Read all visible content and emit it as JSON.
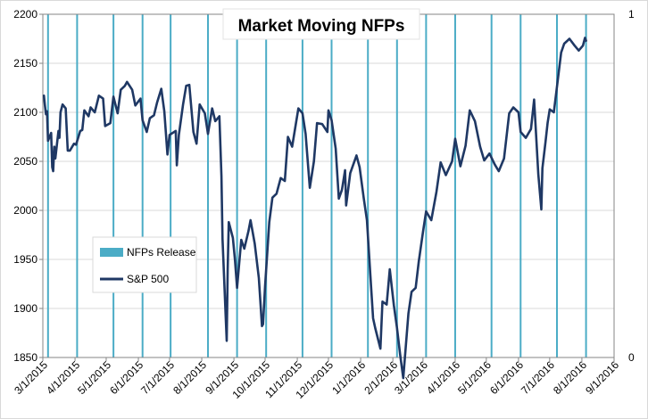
{
  "chart_data": {
    "type": "line",
    "title": "Market Moving NFPs",
    "xlabel": "",
    "ylabel": "",
    "ylim": [
      1850,
      2200
    ],
    "y2lim": [
      0,
      1
    ],
    "x_ticks": [
      "3/1/2015",
      "4/1/2015",
      "5/1/2015",
      "6/1/2015",
      "7/1/2015",
      "8/1/2015",
      "9/1/2015",
      "10/1/2015",
      "11/1/2015",
      "12/1/2015",
      "1/1/2016",
      "2/1/2016",
      "3/1/2016",
      "4/1/2016",
      "5/1/2016",
      "6/1/2016",
      "7/1/2016",
      "8/1/2016",
      "9/1/2016"
    ],
    "y_ticks": [
      1850,
      1900,
      1950,
      2000,
      2050,
      2100,
      2150,
      2200
    ],
    "y2_ticks": [
      0,
      1
    ],
    "grid": "horizontal",
    "legend_position": "left-middle",
    "colors": {
      "nfp": "#4bacc6",
      "sp500": "#1f3864",
      "grid": "#d9d9d9",
      "axis": "#868686"
    },
    "series": [
      {
        "name": "NFPs Release",
        "kind": "vertical-markers",
        "x": [
          "3/6/2015",
          "4/3/2015",
          "5/8/2015",
          "6/5/2015",
          "7/2/2015",
          "8/7/2015",
          "9/4/2015",
          "10/2/2015",
          "11/6/2015",
          "12/4/2015",
          "1/8/2016",
          "2/5/2016",
          "3/4/2016",
          "4/1/2016",
          "5/6/2016",
          "6/3/2016",
          "7/8/2016",
          "8/5/2016"
        ]
      },
      {
        "name": "S&P 500",
        "kind": "line",
        "x": [
          "3/2/2015",
          "3/3/2015",
          "3/4/2015",
          "3/5/2015",
          "3/6/2015",
          "3/9/2015",
          "3/10/2015",
          "3/11/2015",
          "3/12/2015",
          "3/13/2015",
          "3/16/2015",
          "3/17/2015",
          "3/18/2015",
          "3/20/2015",
          "3/23/2015",
          "3/25/2015",
          "3/27/2015",
          "3/31/2015",
          "4/2/2015",
          "4/6/2015",
          "4/8/2015",
          "4/10/2015",
          "4/14/2015",
          "4/16/2015",
          "4/20/2015",
          "4/24/2015",
          "4/28/2015",
          "4/30/2015",
          "5/5/2015",
          "5/8/2015",
          "5/12/2015",
          "5/15/2015",
          "5/19/2015",
          "5/21/2015",
          "5/26/2015",
          "5/29/2015",
          "6/3/2015",
          "6/5/2015",
          "6/9/2015",
          "6/12/2015",
          "6/16/2015",
          "6/19/2015",
          "6/23/2015",
          "6/26/2015",
          "6/29/2015",
          "7/1/2015",
          "7/7/2015",
          "7/8/2015",
          "7/10/2015",
          "7/14/2015",
          "7/17/2015",
          "7/20/2015",
          "7/24/2015",
          "7/27/2015",
          "7/30/2015",
          "8/4/2015",
          "8/7/2015",
          "8/11/2015",
          "8/14/2015",
          "8/18/2015",
          "8/20/2015",
          "8/21/2015",
          "8/24/2015",
          "8/25/2015",
          "8/26/2015",
          "8/27/2015",
          "8/31/2015",
          "9/2/2015",
          "9/4/2015",
          "9/8/2015",
          "9/11/2015",
          "9/15/2015",
          "9/17/2015",
          "9/21/2015",
          "9/25/2015",
          "9/28/2015",
          "9/29/2015",
          "10/1/2015",
          "10/5/2015",
          "10/8/2015",
          "10/12/2015",
          "10/16/2015",
          "10/20/2015",
          "10/23/2015",
          "10/27/2015",
          "11/2/2015",
          "11/6/2015",
          "11/9/2015",
          "11/13/2015",
          "11/17/2015",
          "11/20/2015",
          "11/25/2015",
          "11/30/2015",
          "12/1/2015",
          "12/4/2015",
          "12/8/2015",
          "12/11/2015",
          "12/14/2015",
          "12/17/2015",
          "12/18/2015",
          "12/22/2015",
          "12/28/2015",
          "12/31/2015",
          "1/4/2016",
          "1/7/2016",
          "1/11/2016",
          "1/13/2016",
          "1/15/2016",
          "1/20/2016",
          "1/22/2016",
          "1/26/2016",
          "1/29/2016",
          "2/2/2016",
          "2/5/2016",
          "2/8/2016",
          "2/11/2016",
          "2/16/2016",
          "2/19/2016",
          "2/23/2016",
          "2/26/2016",
          "3/1/2016",
          "3/4/2016",
          "3/9/2016",
          "3/14/2016",
          "3/18/2016",
          "3/23/2016",
          "3/29/2016",
          "4/1/2016",
          "4/6/2016",
          "4/11/2016",
          "4/15/2016",
          "4/20/2016",
          "4/25/2016",
          "4/29/2016",
          "5/4/2016",
          "5/9/2016",
          "5/13/2016",
          "5/18/2016",
          "5/23/2016",
          "5/27/2016",
          "6/1/2016",
          "6/3/2016",
          "6/8/2016",
          "6/13/2016",
          "6/16/2016",
          "6/20/2016",
          "6/23/2016",
          "6/24/2016",
          "6/27/2016",
          "6/29/2016",
          "7/1/2016",
          "7/5/2016",
          "7/8/2016",
          "7/12/2016",
          "7/15/2016",
          "7/20/2016",
          "7/25/2016",
          "7/29/2016",
          "8/2/2016",
          "8/4/2016",
          "8/5/2016"
        ],
        "values": [
          2117,
          2107,
          2098,
          2101,
          2071,
          2079,
          2044,
          2040,
          2065,
          2053,
          2081,
          2074,
          2100,
          2108,
          2104,
          2061,
          2061,
          2068,
          2067,
          2081,
          2082,
          2102,
          2096,
          2105,
          2100,
          2117,
          2114,
          2086,
          2089,
          2116,
          2099,
          2123,
          2127,
          2131,
          2123,
          2107,
          2114,
          2092,
          2080,
          2094,
          2097,
          2110,
          2124,
          2101,
          2057,
          2077,
          2081,
          2046,
          2077,
          2108,
          2127,
          2128,
          2080,
          2068,
          2108,
          2099,
          2078,
          2104,
          2091,
          2096,
          2035,
          1971,
          1893,
          1867,
          1940,
          1988,
          1972,
          1949,
          1921,
          1970,
          1961,
          1979,
          1990,
          1966,
          1931,
          1882,
          1884,
          1923,
          1988,
          2013,
          2017,
          2033,
          2030,
          2075,
          2065,
          2104,
          2099,
          2078,
          2023,
          2050,
          2089,
          2088,
          2080,
          2102,
          2092,
          2063,
          2012,
          2021,
          2041,
          2005,
          2038,
          2056,
          2044,
          2012,
          1990,
          1923,
          1890,
          1880,
          1859,
          1907,
          1904,
          1940,
          1903,
          1880,
          1853,
          1829,
          1895,
          1917,
          1921,
          1948,
          1978,
          1999,
          1990,
          2019,
          2049,
          2036,
          2050,
          2073,
          2045,
          2066,
          2102,
          2091,
          2065,
          2051,
          2058,
          2047,
          2040,
          2053,
          2099,
          2105,
          2100,
          2080,
          2074,
          2083,
          2113,
          2037,
          2001,
          2043,
          2070,
          2089,
          2103,
          2100,
          2126,
          2161,
          2170,
          2175,
          2168,
          2163,
          2168,
          2176,
          2173
        ]
      }
    ]
  }
}
